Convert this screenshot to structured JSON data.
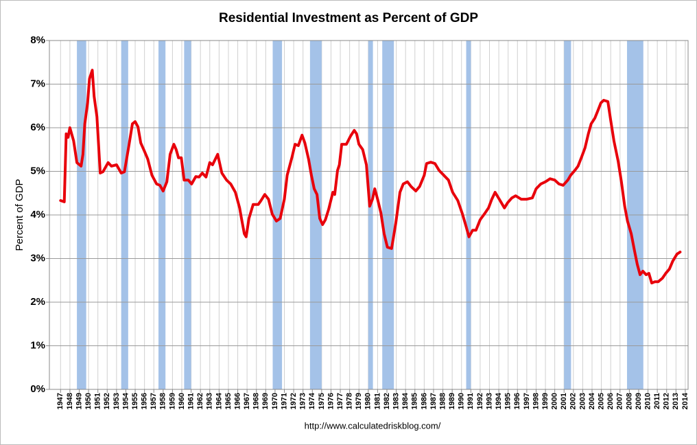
{
  "chart_data": {
    "type": "line",
    "title": "Residential Investment as Percent of GDP",
    "ylabel": "Percent of GDP",
    "source": "http://www.calculatedriskblog.com/",
    "xlim": [
      1945.8,
      2014.3
    ],
    "ylim": [
      0,
      8
    ],
    "xticks": [
      1947,
      1948,
      1949,
      1950,
      1951,
      1952,
      1953,
      1954,
      1955,
      1956,
      1957,
      1958,
      1959,
      1960,
      1961,
      1962,
      1963,
      1964,
      1965,
      1966,
      1967,
      1968,
      1969,
      1970,
      1971,
      1972,
      1973,
      1974,
      1975,
      1976,
      1977,
      1978,
      1979,
      1980,
      1981,
      1982,
      1983,
      1984,
      1985,
      1986,
      1987,
      1988,
      1989,
      1990,
      1991,
      1992,
      1993,
      1994,
      1995,
      1996,
      1997,
      1998,
      1999,
      2000,
      2001,
      2002,
      2003,
      2004,
      2005,
      2006,
      2007,
      2008,
      2009,
      2010,
      2011,
      2012,
      2013,
      2014
    ],
    "yticks": [
      {
        "value": 0,
        "label": "0%"
      },
      {
        "value": 1,
        "label": "1%"
      },
      {
        "value": 2,
        "label": "2%"
      },
      {
        "value": 3,
        "label": "3%"
      },
      {
        "value": 4,
        "label": "4%"
      },
      {
        "value": 5,
        "label": "5%"
      },
      {
        "value": 6,
        "label": "6%"
      },
      {
        "value": 7,
        "label": "7%"
      },
      {
        "value": 8,
        "label": "8%"
      }
    ],
    "grid": true,
    "recession_color": "#a4c2e8",
    "recessions": [
      [
        1948.75,
        1949.75
      ],
      [
        1953.5,
        1954.25
      ],
      [
        1957.5,
        1958.25
      ],
      [
        1960.25,
        1961.0
      ],
      [
        1969.75,
        1970.75
      ],
      [
        1973.75,
        1975.0
      ],
      [
        1980.0,
        1980.5
      ],
      [
        1981.5,
        1982.75
      ],
      [
        1990.5,
        1991.0
      ],
      [
        2001.0,
        2001.75
      ],
      [
        2007.75,
        2009.5
      ]
    ],
    "series": [
      {
        "color": "#e8000b",
        "x": [
          1947.0,
          1947.4,
          1947.6,
          1947.8,
          1948.0,
          1948.4,
          1948.75,
          1949.2,
          1949.4,
          1949.6,
          1949.9,
          1950.1,
          1950.4,
          1950.6,
          1950.9,
          1951.25,
          1951.55,
          1952.1,
          1952.45,
          1953.0,
          1953.5,
          1953.85,
          1954.35,
          1954.7,
          1955.0,
          1955.3,
          1955.6,
          1956.0,
          1956.35,
          1956.8,
          1957.3,
          1957.65,
          1958.0,
          1958.4,
          1958.75,
          1959.15,
          1959.4,
          1959.65,
          1959.95,
          1960.25,
          1960.7,
          1961.05,
          1961.5,
          1961.85,
          1962.2,
          1962.6,
          1963.0,
          1963.3,
          1963.85,
          1964.3,
          1964.8,
          1965.25,
          1965.75,
          1966.2,
          1966.4,
          1966.7,
          1966.9,
          1967.2,
          1967.65,
          1968.2,
          1968.5,
          1968.9,
          1969.3,
          1969.7,
          1970.15,
          1970.55,
          1971.0,
          1971.3,
          1971.8,
          1972.15,
          1972.5,
          1972.9,
          1973.2,
          1973.6,
          1973.9,
          1974.2,
          1974.5,
          1974.8,
          1975.1,
          1975.4,
          1975.75,
          1976.2,
          1976.4,
          1976.7,
          1976.9,
          1977.15,
          1977.65,
          1978.1,
          1978.5,
          1978.75,
          1979.0,
          1979.4,
          1979.8,
          1980.15,
          1980.45,
          1980.7,
          1981.0,
          1981.35,
          1981.7,
          1982.05,
          1982.5,
          1982.95,
          1983.4,
          1983.75,
          1984.2,
          1984.6,
          1985.1,
          1985.5,
          1986.0,
          1986.25,
          1986.7,
          1987.15,
          1987.6,
          1988.1,
          1988.6,
          1989.05,
          1989.6,
          1990.1,
          1990.5,
          1990.8,
          1991.2,
          1991.55,
          1992.0,
          1992.45,
          1992.9,
          1993.25,
          1993.6,
          1994.05,
          1994.6,
          1994.95,
          1995.4,
          1995.8,
          1996.4,
          1997.0,
          1997.6,
          1998.0,
          1998.5,
          1999.0,
          1999.5,
          2000.0,
          2000.45,
          2000.9,
          2001.4,
          2001.7,
          2002.15,
          2002.5,
          2002.9,
          2003.25,
          2003.6,
          2003.9,
          2004.3,
          2004.6,
          2004.95,
          2005.25,
          2005.7,
          2006.0,
          2006.35,
          2006.8,
          2007.15,
          2007.5,
          2007.8,
          2008.2,
          2008.55,
          2008.85,
          2009.15,
          2009.45,
          2009.8,
          2010.1,
          2010.4,
          2010.75,
          2011.1,
          2011.55,
          2011.9,
          2012.3,
          2012.65,
          2013.1,
          2013.45
        ],
        "values": [
          4.33,
          4.3,
          5.86,
          5.78,
          6.0,
          5.7,
          5.2,
          5.12,
          5.39,
          6.09,
          6.57,
          7.12,
          7.32,
          6.72,
          6.25,
          4.96,
          4.99,
          5.2,
          5.12,
          5.15,
          4.96,
          4.99,
          5.62,
          6.09,
          6.14,
          6.02,
          5.65,
          5.46,
          5.28,
          4.91,
          4.71,
          4.68,
          4.55,
          4.76,
          5.39,
          5.62,
          5.5,
          5.31,
          5.31,
          4.8,
          4.8,
          4.71,
          4.88,
          4.87,
          4.96,
          4.87,
          5.2,
          5.15,
          5.39,
          4.96,
          4.8,
          4.71,
          4.52,
          4.16,
          3.92,
          3.57,
          3.5,
          3.92,
          4.24,
          4.24,
          4.33,
          4.47,
          4.36,
          4.02,
          3.86,
          3.92,
          4.36,
          4.91,
          5.31,
          5.62,
          5.59,
          5.83,
          5.65,
          5.28,
          4.91,
          4.6,
          4.47,
          3.92,
          3.78,
          3.89,
          4.13,
          4.52,
          4.47,
          5.02,
          5.15,
          5.62,
          5.62,
          5.81,
          5.94,
          5.86,
          5.62,
          5.5,
          5.15,
          4.2,
          4.36,
          4.6,
          4.36,
          4.05,
          3.57,
          3.26,
          3.23,
          3.81,
          4.52,
          4.71,
          4.76,
          4.65,
          4.55,
          4.65,
          4.91,
          5.18,
          5.21,
          5.18,
          5.02,
          4.91,
          4.8,
          4.52,
          4.33,
          4.02,
          3.73,
          3.5,
          3.65,
          3.65,
          3.89,
          4.02,
          4.16,
          4.36,
          4.52,
          4.36,
          4.16,
          4.28,
          4.39,
          4.44,
          4.36,
          4.36,
          4.39,
          4.6,
          4.71,
          4.76,
          4.83,
          4.8,
          4.71,
          4.68,
          4.8,
          4.91,
          5.02,
          5.12,
          5.34,
          5.54,
          5.86,
          6.09,
          6.22,
          6.38,
          6.57,
          6.63,
          6.6,
          6.17,
          5.7,
          5.23,
          4.76,
          4.2,
          3.86,
          3.57,
          3.18,
          2.87,
          2.63,
          2.71,
          2.63,
          2.66,
          2.44,
          2.47,
          2.47,
          2.55,
          2.66,
          2.76,
          2.94,
          3.1,
          3.15
        ]
      }
    ]
  }
}
